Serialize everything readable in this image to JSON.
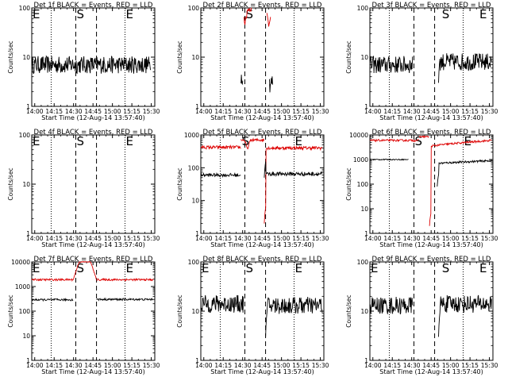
{
  "chart_data": [
    {
      "type": "line",
      "title": "Det 1f BLACK = Events, RED = LLD",
      "xlabel": "Start Time (12-Aug-14 13:57:40)",
      "ylabel": "Counts/sec",
      "yscale": "log",
      "ylim": [
        1,
        100
      ],
      "y_ticks": [
        "1",
        "10",
        "100"
      ],
      "x_ticks": [
        "14:00",
        "14:15",
        "14:30",
        "14:45",
        "15:00",
        "15:15",
        "15:30"
      ],
      "markers": [
        {
          "label": "E",
          "t": 0
        },
        {
          "label": "S",
          "t": 34
        },
        {
          "label": "E",
          "t": 72
        }
      ],
      "series": [
        {
          "color": "#000000",
          "segments": [
            {
              "t0": 0,
              "t1": 92,
              "level": 7,
              "noise": 0.18
            }
          ]
        }
      ]
    },
    {
      "type": "line",
      "title": "Det 2f BLACK = Events, RED = LLD",
      "xlabel": "Start Time (12-Aug-14 13:57:40)",
      "ylabel": "Counts/sec",
      "yscale": "log",
      "ylim": [
        1,
        100
      ],
      "y_ticks": [
        "1",
        "10",
        "100"
      ],
      "x_ticks": [
        "14:00",
        "14:15",
        "14:30",
        "14:45",
        "15:00",
        "15:15",
        "15:30"
      ],
      "markers": [
        {
          "label": "S",
          "t": 34
        }
      ],
      "series": [
        {
          "color": "#000000",
          "segments": [
            {
              "t0": 31,
              "t1": 32.5,
              "level": 4,
              "noise": 0.15
            },
            {
              "t0": 53,
              "t1": 55.5,
              "level": 3,
              "noise": 0.2
            }
          ]
        },
        {
          "color": "#dd0000",
          "segments": [
            {
              "t0": 33,
              "t1": 39,
              "level": 95,
              "noise": 0.05,
              "dip_at": 34,
              "dip_depth": 0.5
            },
            {
              "t0": 51,
              "t1": 54,
              "level": 95,
              "noise": 0.05,
              "dip_at": 52.5,
              "dip_depth": 0.55
            }
          ]
        }
      ]
    },
    {
      "type": "line",
      "title": "Det 3f BLACK = Events, RED = LLD",
      "xlabel": "Start Time (12-Aug-14 13:57:40)",
      "ylabel": "Counts/sec",
      "yscale": "log",
      "ylim": [
        1,
        100
      ],
      "y_ticks": [
        "1",
        "10",
        "100"
      ],
      "x_ticks": [
        "14:00",
        "14:15",
        "14:30",
        "14:45",
        "15:00",
        "15:15",
        "15:30"
      ],
      "markers": [
        {
          "label": "S",
          "t": 55
        },
        {
          "label": "E",
          "t": 84
        }
      ],
      "series": [
        {
          "color": "#000000",
          "segments": [
            {
              "t0": 0,
              "t1": 33,
              "level": 7,
              "noise": 0.18
            },
            {
              "t0": 53,
              "t1": 94,
              "level": 8,
              "noise": 0.18,
              "start_dip": 3
            }
          ]
        }
      ]
    },
    {
      "type": "line",
      "title": "Det 4f BLACK = Events, RED = LLD",
      "xlabel": "Start Time (12-Aug-14 13:57:40)",
      "ylabel": "Counts/sec",
      "yscale": "log",
      "ylim": [
        1,
        100
      ],
      "y_ticks": [
        "1",
        "10",
        "100"
      ],
      "x_ticks": [
        "14:00",
        "14:15",
        "14:30",
        "14:45",
        "15:00",
        "15:15",
        "15:30"
      ],
      "markers": [
        {
          "label": "E",
          "t": 0
        },
        {
          "label": "S",
          "t": 34
        },
        {
          "label": "E",
          "t": 72
        }
      ],
      "series": []
    },
    {
      "type": "line",
      "title": "Det 5f BLACK = Events, RED = LLD",
      "xlabel": "Start Time (12-Aug-14 13:57:40)",
      "ylabel": "Counts/sec",
      "yscale": "log",
      "ylim": [
        1,
        1000
      ],
      "y_ticks": [
        "1",
        "10",
        "100",
        "1000"
      ],
      "x_ticks": [
        "14:00",
        "14:15",
        "14:30",
        "14:45",
        "15:00",
        "15:15",
        "15:30"
      ],
      "markers": [
        {
          "label": "S",
          "t": 31
        },
        {
          "label": "E",
          "t": 72
        }
      ],
      "series": [
        {
          "color": "#dd0000",
          "segments": [
            {
              "t0": 0,
              "t1": 31,
              "level": 420,
              "noise": 0.05
            },
            {
              "t0": 31,
              "t1": 49,
              "level": 700,
              "noise": 0.04,
              "dip_at": 36,
              "dip_depth": 0.5
            },
            {
              "t0": 49,
              "t1": 94,
              "level": 400,
              "noise": 0.05,
              "start_dip": 2
            }
          ]
        },
        {
          "color": "#000000",
          "segments": [
            {
              "t0": 0,
              "t1": 31,
              "level": 60,
              "noise": 0.05
            },
            {
              "t0": 49,
              "t1": 94,
              "level": 65,
              "noise": 0.06,
              "start_dip": 50
            }
          ]
        }
      ]
    },
    {
      "type": "line",
      "title": "Det 6f BLACK = Events, RED = LLD",
      "xlabel": "Start Time (12-Aug-14 13:57:40)",
      "ylabel": "Counts/sec",
      "yscale": "log",
      "ylim": [
        1,
        10000
      ],
      "y_ticks": [
        "1",
        "10",
        "100",
        "1000",
        "10000"
      ],
      "x_ticks": [
        "14:00",
        "14:15",
        "14:30",
        "14:45",
        "15:00",
        "15:15",
        "15:30"
      ],
      "markers": [
        {
          "label": "S",
          "t": 34
        },
        {
          "label": "E",
          "t": 72
        }
      ],
      "series": [
        {
          "color": "#dd0000",
          "segments": [
            {
              "t0": 0,
              "t1": 38,
              "level": 6000,
              "noise": 0.04
            },
            {
              "t0": 38,
              "t1": 46,
              "level": 8500,
              "noise": 0.03
            },
            {
              "t0": 46,
              "t1": 94,
              "level": 3500,
              "noise": 0.04,
              "ramp_to": 6000,
              "start_dip": 2
            }
          ]
        },
        {
          "color": "#000000",
          "segments": [
            {
              "t0": 0,
              "t1": 30,
              "level": 1000,
              "noise": 0.02
            },
            {
              "t0": 52,
              "t1": 94,
              "level": 700,
              "noise": 0.04,
              "ramp_to": 900,
              "start_dip": 80
            }
          ]
        }
      ]
    },
    {
      "type": "line",
      "title": "Det 7f BLACK = Events, RED = LLD",
      "xlabel": "Start Time (12-Aug-14 13:57:40)",
      "ylabel": "Counts/sec",
      "yscale": "log",
      "ylim": [
        1,
        10000
      ],
      "y_ticks": [
        "1",
        "10",
        "100",
        "1000",
        "10000"
      ],
      "x_ticks": [
        "14:00",
        "14:15",
        "14:30",
        "14:45",
        "15:00",
        "15:15",
        "15:30"
      ],
      "markers": [
        {
          "label": "E",
          "t": 0
        },
        {
          "label": "S",
          "t": 34
        },
        {
          "label": "E",
          "t": 72
        }
      ],
      "series": [
        {
          "color": "#dd0000",
          "segments": [
            {
              "t0": 0,
              "t1": 32,
              "level": 1900,
              "noise": 0.04
            },
            {
              "t0": 32,
              "t1": 50,
              "level": 10000,
              "noise": 0.02,
              "hump": true
            },
            {
              "t0": 50,
              "t1": 94,
              "level": 1900,
              "noise": 0.04
            }
          ]
        },
        {
          "color": "#000000",
          "segments": [
            {
              "t0": 0,
              "t1": 32,
              "level": 290,
              "noise": 0.04
            },
            {
              "t0": 50,
              "t1": 94,
              "level": 300,
              "noise": 0.04
            }
          ]
        }
      ]
    },
    {
      "type": "line",
      "title": "Det 8f BLACK = Events, RED = LLD",
      "xlabel": "Start Time (12-Aug-14 13:57:40)",
      "ylabel": "Counts/sec",
      "yscale": "log",
      "ylim": [
        1,
        100
      ],
      "y_ticks": [
        "1",
        "10",
        "100"
      ],
      "x_ticks": [
        "14:00",
        "14:15",
        "14:30",
        "14:45",
        "15:00",
        "15:15",
        "15:30"
      ],
      "markers": [
        {
          "label": "E",
          "t": 0
        },
        {
          "label": "S",
          "t": 34
        },
        {
          "label": "E",
          "t": 72
        }
      ],
      "series": [
        {
          "color": "#000000",
          "segments": [
            {
              "t0": 0,
              "t1": 33,
              "level": 14,
              "noise": 0.18
            },
            {
              "t0": 50,
              "t1": 94,
              "level": 13,
              "noise": 0.18,
              "start_dip": 3
            }
          ]
        }
      ]
    },
    {
      "type": "line",
      "title": "Det 9f BLACK = Events, RED = LLD",
      "xlabel": "Start Time (12-Aug-14 13:57:40)",
      "ylabel": "Counts/sec",
      "yscale": "log",
      "ylim": [
        1,
        100
      ],
      "y_ticks": [
        "1",
        "10",
        "100"
      ],
      "x_ticks": [
        "14:00",
        "14:15",
        "14:30",
        "14:45",
        "15:00",
        "15:15",
        "15:30"
      ],
      "markers": [
        {
          "label": "E",
          "t": 0
        },
        {
          "label": "S",
          "t": 55
        },
        {
          "label": "E",
          "t": 84
        }
      ],
      "series": [
        {
          "color": "#000000",
          "segments": [
            {
              "t0": 0,
              "t1": 33,
              "level": 13,
              "noise": 0.18
            },
            {
              "t0": 53,
              "t1": 94,
              "level": 14,
              "noise": 0.18,
              "start_dip": 3
            }
          ]
        }
      ]
    }
  ],
  "dashed_lines_t": [
    34,
    50
  ],
  "dotted_lines_t": [
    15,
    72
  ]
}
